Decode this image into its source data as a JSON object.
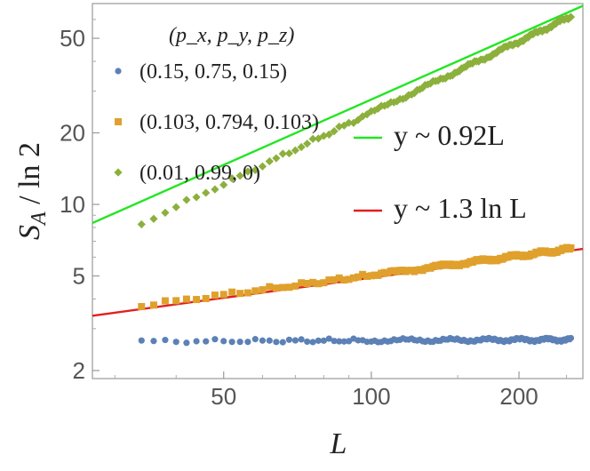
{
  "chart_data": {
    "type": "scatter",
    "scale": {
      "x": "log",
      "y": "log"
    },
    "xlim": [
      27,
      270
    ],
    "ylim": [
      1.85,
      70
    ],
    "xlabel": "L",
    "ylabel": "S_A / ln 2",
    "x_ticks": [
      50,
      100,
      200
    ],
    "x_tick_labels": [
      "50",
      "100",
      "200"
    ],
    "y_ticks": [
      2,
      5,
      10,
      20,
      50
    ],
    "y_tick_labels": [
      "2",
      "5",
      "10",
      "20",
      "50"
    ],
    "legend_title": "(p_x, p_y, p_z)",
    "series": [
      {
        "name": "(0.15, 0.75, 0.15)",
        "marker": "circle",
        "color": "#5c81b6",
        "x_range": [
          34,
          256
        ],
        "y_start": 2.65,
        "y_end": 2.7,
        "model": "const"
      },
      {
        "name": "(0.103, 0.794, 0.103)",
        "marker": "square",
        "color": "#e0a02c",
        "x_range": [
          34,
          256
        ],
        "y_start": 3.75,
        "y_end": 6.5,
        "model": "log"
      },
      {
        "name": "(0.01, 0.99, 0)",
        "marker": "diamond",
        "color": "#8cb03c",
        "x_range": [
          34,
          256
        ],
        "y_start": 8.3,
        "y_end": 62.0,
        "model": "power"
      }
    ],
    "fits": [
      {
        "label": "y ~ 0.92L",
        "color": "#22e622",
        "x": [
          27,
          270
        ],
        "y": [
          8.35,
          68.5
        ]
      },
      {
        "label": "y ~ 1.3 ln L",
        "color": "#e02020",
        "x": [
          27,
          270
        ],
        "y": [
          3.4,
          6.5
        ]
      }
    ]
  }
}
